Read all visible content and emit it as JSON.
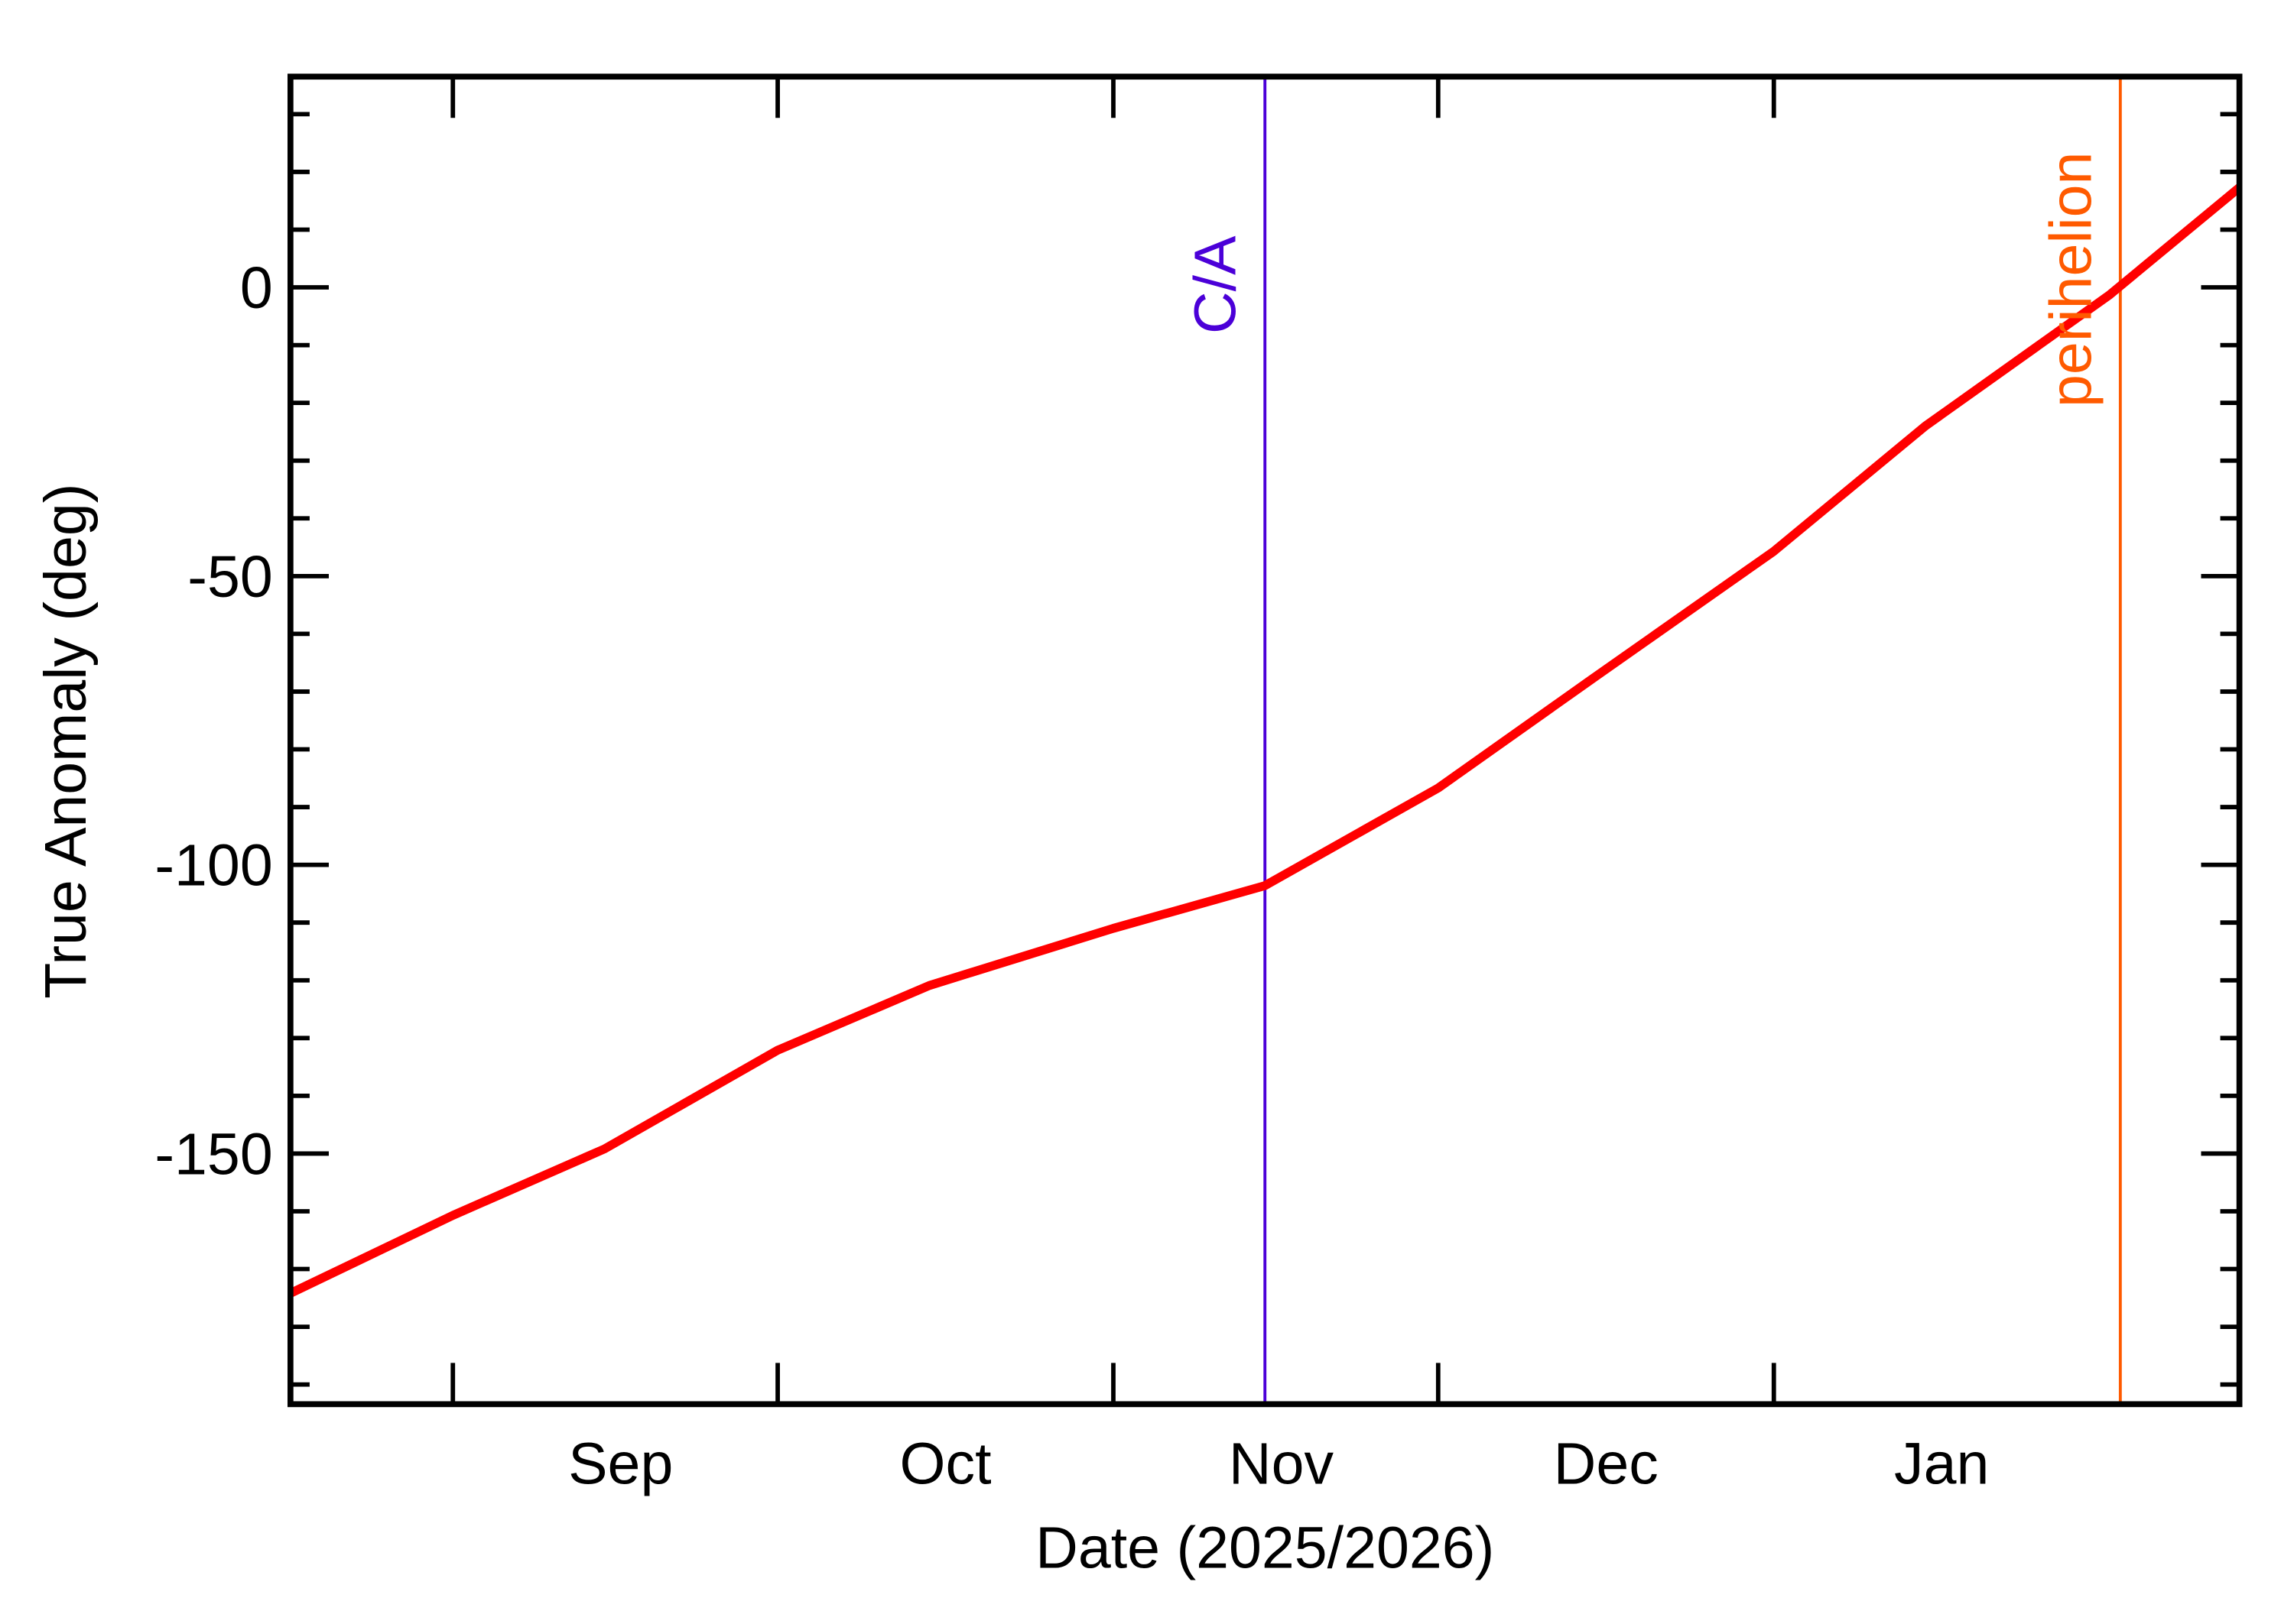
{
  "chart_data": {
    "type": "line",
    "xlabel": "Date (2025/2026)",
    "ylabel": "True Anomaly (deg)",
    "x": [
      "2025-08-17",
      "2025-09-01",
      "2025-09-15",
      "2025-10-01",
      "2025-10-15",
      "2025-11-01",
      "2025-11-15",
      "2025-12-01",
      "2025-12-15",
      "2026-01-01",
      "2026-01-15",
      "2026-02-01",
      "2026-02-13"
    ],
    "series": [
      {
        "color": "#ff0000",
        "values": [
          -174.2,
          -160.7,
          -149.2,
          -132.1,
          -120.9,
          -111.0,
          -103.6,
          -86.7,
          -68.1,
          -45.7,
          -24.0,
          -1.3,
          17.3
        ]
      }
    ],
    "xlim": [
      "2025-08-17",
      "2026-02-13"
    ],
    "xticks": [
      {
        "value": "2025-09-01",
        "label": "Sep"
      },
      {
        "value": "2025-10-01",
        "label": "Oct"
      },
      {
        "value": "2025-11-01",
        "label": "Nov"
      },
      {
        "value": "2025-12-01",
        "label": "Dec"
      },
      {
        "value": "2026-01-01",
        "label": "Jan"
      }
    ],
    "ylim": [
      -193.4,
      36.5
    ],
    "yticks": [
      -150,
      -100,
      -50,
      0
    ],
    "y_minor_ticks": [
      -190,
      -180,
      -170,
      -160,
      -140,
      -130,
      -120,
      -110,
      -90,
      -80,
      -70,
      -60,
      -40,
      -30,
      -20,
      -10,
      10,
      20,
      30
    ],
    "markers": [
      {
        "x": "2025-11-15",
        "label": "C/A",
        "color": "#4b00d8"
      },
      {
        "x": "2026-02-02",
        "label": "perihelion",
        "color": "#ff5a00"
      }
    ]
  }
}
